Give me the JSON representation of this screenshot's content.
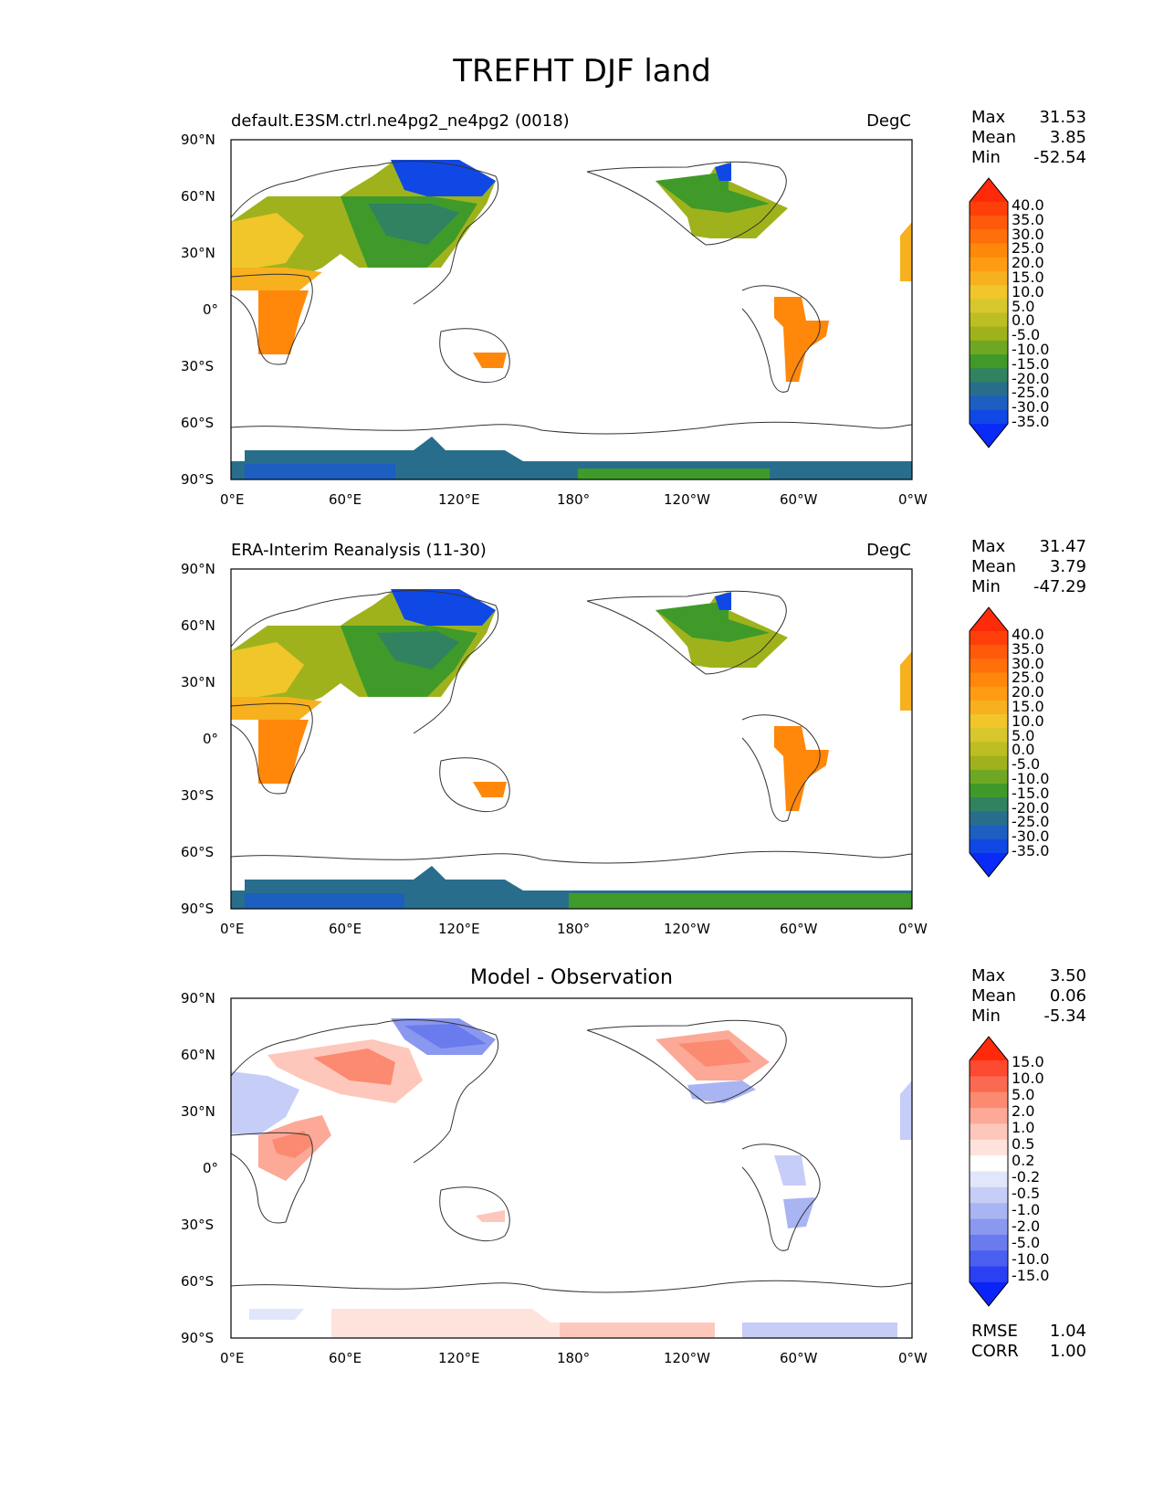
{
  "figure_title": "TREFHT DJF land",
  "lat_ticks": [
    "90°N",
    "60°N",
    "30°N",
    "0°",
    "30°S",
    "60°S",
    "90°S"
  ],
  "lon_ticks": [
    "0°E",
    "60°E",
    "120°E",
    "180°",
    "120°W",
    "60°W",
    "0°W"
  ],
  "panels": [
    {
      "id": "model",
      "title_left": "default.E3SM.ctrl.ne4pg2_ne4pg2 (0018)",
      "title_right": "DegC",
      "title_center": "",
      "stats": {
        "max_label": "Max",
        "max": "31.53",
        "mean_label": "Mean",
        "mean": "3.85",
        "min_label": "Min",
        "min": "-52.54"
      },
      "colorbar_labels": [
        "40.0",
        "35.0",
        "30.0",
        "25.0",
        "20.0",
        "15.0",
        "10.0",
        "5.0",
        "0.0",
        "-5.0",
        "-10.0",
        "-15.0",
        "-20.0",
        "-25.0",
        "-30.0",
        "-35.0"
      ],
      "colorbar_colors": [
        "#ff2a0a",
        "#ff3f0a",
        "#ff5a0a",
        "#ff700a",
        "#ff870a",
        "#ff9c12",
        "#f7b01e",
        "#f0c62b",
        "#d7c72c",
        "#bcbe22",
        "#9fb21c",
        "#6ea722",
        "#3f9a2a",
        "#308260",
        "#286e8c",
        "#1c5fc0",
        "#1048e6",
        "#0a2af7"
      ]
    },
    {
      "id": "obs",
      "title_left": "ERA-Interim Reanalysis (11-30)",
      "title_right": "DegC",
      "title_center": "",
      "stats": {
        "max_label": "Max",
        "max": "31.47",
        "mean_label": "Mean",
        "mean": "3.79",
        "min_label": "Min",
        "min": "-47.29"
      },
      "colorbar_labels": [
        "40.0",
        "35.0",
        "30.0",
        "25.0",
        "20.0",
        "15.0",
        "10.0",
        "5.0",
        "0.0",
        "-5.0",
        "-10.0",
        "-15.0",
        "-20.0",
        "-25.0",
        "-30.0",
        "-35.0"
      ],
      "colorbar_colors": [
        "#ff2a0a",
        "#ff3f0a",
        "#ff5a0a",
        "#ff700a",
        "#ff870a",
        "#ff9c12",
        "#f7b01e",
        "#f0c62b",
        "#d7c72c",
        "#bcbe22",
        "#9fb21c",
        "#6ea722",
        "#3f9a2a",
        "#308260",
        "#286e8c",
        "#1c5fc0",
        "#1048e6",
        "#0a2af7"
      ]
    },
    {
      "id": "diff",
      "title_left": "",
      "title_right": "",
      "title_center": "Model - Observation",
      "stats": {
        "max_label": "Max",
        "max": "3.50",
        "mean_label": "Mean",
        "mean": "0.06",
        "min_label": "Min",
        "min": "-5.34"
      },
      "colorbar_labels": [
        "15.0",
        "10.0",
        "5.0",
        "2.0",
        "1.0",
        "0.5",
        "0.2",
        "-0.2",
        "-0.5",
        "-1.0",
        "-2.0",
        "-5.0",
        "-10.0",
        "-15.0"
      ],
      "colorbar_colors": [
        "#ff2a0a",
        "#fd4a30",
        "#fb6a50",
        "#fb8a70",
        "#fca998",
        "#fdc7bc",
        "#fee3dc",
        "#ffffff",
        "#e2e6fb",
        "#c6cdf7",
        "#a9b4f3",
        "#8a98f0",
        "#6a7bee",
        "#4a5eef",
        "#2a40f2",
        "#0a24f7"
      ],
      "rmse_label": "RMSE",
      "rmse": "1.04",
      "corr_label": "CORR",
      "corr": "1.00"
    }
  ],
  "map_data": {
    "projection": "PlateCarree, central longitude 180°",
    "lon_range": [
      0,
      360
    ],
    "lat_range": [
      -90,
      90
    ]
  }
}
